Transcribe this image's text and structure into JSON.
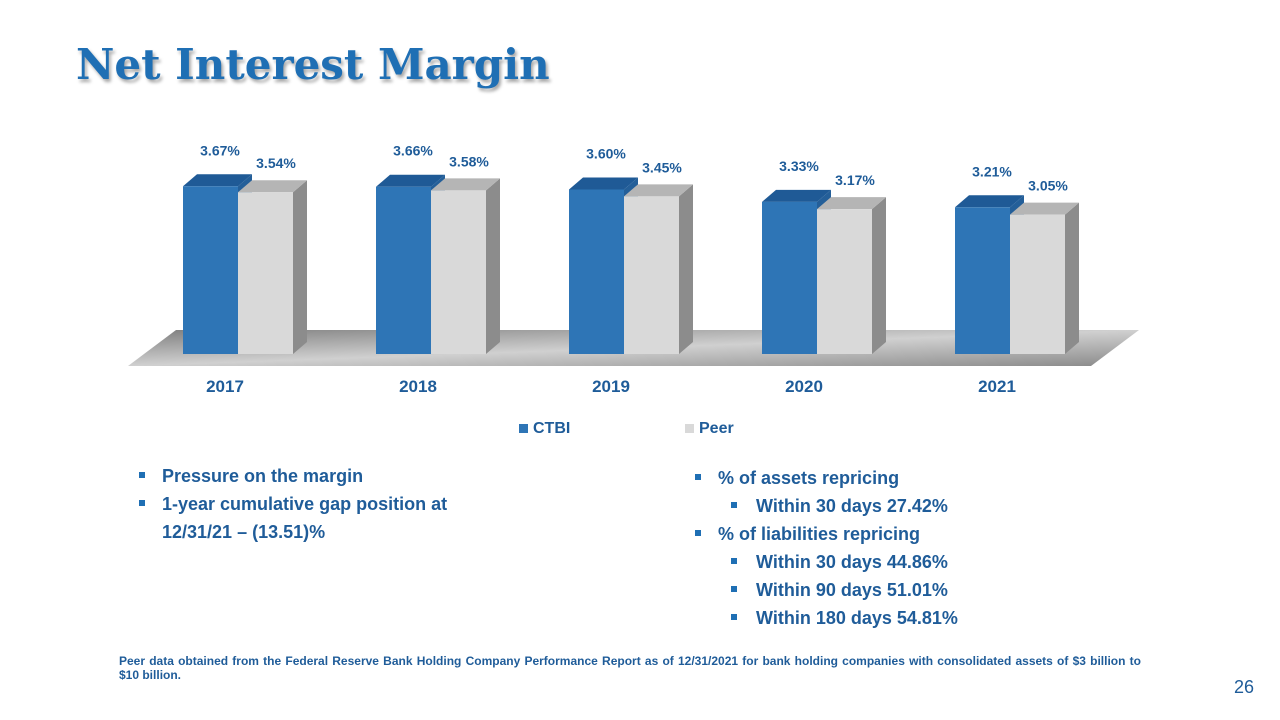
{
  "slide": {
    "title": "Net Interest Margin",
    "page_number": "26",
    "footnote": "Peer data obtained from the Federal Reserve Bank Holding Company Performance Report as of 12/31/2021 for bank holding companies with consolidated assets of $3 billion to $10 billion."
  },
  "chart_data": {
    "type": "bar",
    "categories": [
      "2017",
      "2018",
      "2019",
      "2020",
      "2021"
    ],
    "series": [
      {
        "name": "CTBI",
        "values": [
          3.67,
          3.66,
          3.6,
          3.33,
          3.21
        ],
        "labels": [
          "3.67%",
          "3.66%",
          "3.60%",
          "3.33%",
          "3.21%"
        ],
        "color": "#2e75b6"
      },
      {
        "name": "Peer",
        "values": [
          3.54,
          3.58,
          3.45,
          3.17,
          3.05
        ],
        "labels": [
          "3.54%",
          "3.58%",
          "3.45%",
          "3.17%",
          "3.05%"
        ],
        "color": "#d9d9d9"
      }
    ],
    "style": "3d-clustered-column",
    "legend_position": "bottom",
    "grid": false
  },
  "bullets_left": [
    {
      "text": "Pressure on the margin",
      "level": 1
    },
    {
      "text": "1-year cumulative gap position at 12/31/21 – (13.51)%",
      "level": 1
    }
  ],
  "bullets_right": [
    {
      "text": "% of assets repricing",
      "level": 1
    },
    {
      "text": "Within 30 days 27.42%",
      "level": 2
    },
    {
      "text": "% of liabilities  repricing",
      "level": 1
    },
    {
      "text": "Within 30 days 44.86%",
      "level": 2
    },
    {
      "text": "Within 90 days 51.01%",
      "level": 2
    },
    {
      "text": "Within 180 days 54.81%",
      "level": 2
    }
  ],
  "colors": {
    "title": "#1f6fb4",
    "text": "#1f5c99",
    "ctbi": "#2e75b6",
    "ctbi_top": "#1f5a96",
    "peer": "#d9d9d9",
    "peer_side": "#8c8c8c",
    "floor": "#a6a6a6"
  }
}
